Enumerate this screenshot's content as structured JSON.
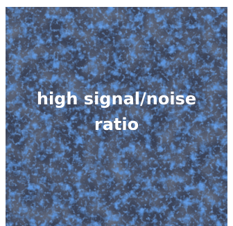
{
  "image": {
    "caption_line1": "high signal/noise",
    "caption_line2": "ratio",
    "colors": {
      "base": "#3a4258",
      "speckle_blue": "#1d4fb0",
      "speckle_light": "#2a62c8",
      "speckle_dark": "#2b3346",
      "text": "#ffffff"
    }
  }
}
